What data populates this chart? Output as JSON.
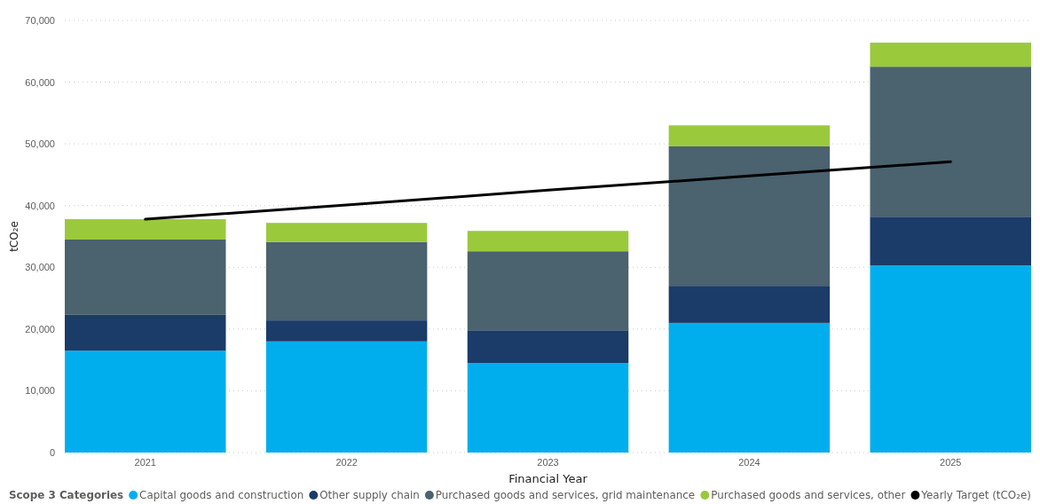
{
  "chart_data": {
    "type": "bar",
    "stacked": true,
    "xlabel": "Financial Year",
    "ylabel": "tCO₂e",
    "legend_title": "Scope 3 Categories",
    "legend": "bottom",
    "grid": "y",
    "categories": [
      "2021",
      "2022",
      "2023",
      "2024",
      "2025"
    ],
    "ylim": [
      0,
      70000
    ],
    "yticks": [
      {
        "value": 0,
        "label": "0"
      },
      {
        "value": 10000,
        "label": "10,000"
      },
      {
        "value": 20000,
        "label": "20,000"
      },
      {
        "value": 30000,
        "label": "30,000"
      },
      {
        "value": 40000,
        "label": "40,000"
      },
      {
        "value": 50000,
        "label": "50,000"
      },
      {
        "value": 60000,
        "label": "60,000"
      },
      {
        "value": 70000,
        "label": "70,000"
      }
    ],
    "series": [
      {
        "name": "Capital goods and construction",
        "color": "#01aeed",
        "values": [
          16500,
          18000,
          14500,
          21000,
          30300
        ]
      },
      {
        "name": "Other supply chain",
        "color": "#1b3b68",
        "values": [
          5800,
          3400,
          5300,
          6000,
          7900
        ]
      },
      {
        "name": "Purchased goods and services, grid maintenance",
        "color": "#4b626f",
        "values": [
          12200,
          12700,
          12800,
          22600,
          24300
        ]
      },
      {
        "name": "Purchased goods and services, other",
        "color": "#9bc93c",
        "values": [
          3300,
          3100,
          3300,
          3400,
          3900
        ]
      },
      {
        "name": "Yearly Target (tCO₂e)",
        "type": "line",
        "color": "#000000",
        "values": [
          37800,
          40100,
          42500,
          44800,
          47100
        ]
      }
    ]
  }
}
